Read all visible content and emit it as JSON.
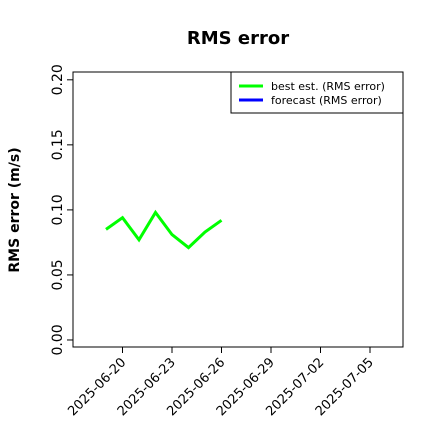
{
  "chart_data": {
    "type": "line",
    "title": "RMS error",
    "y_label": "RMS error (m/s)",
    "x": [
      "2025-06-19",
      "2025-06-20",
      "2025-06-21",
      "2025-06-22",
      "2025-06-23",
      "2025-06-24",
      "2025-06-25",
      "2025-06-26"
    ],
    "series": [
      {
        "name": "best est. (RMS error)",
        "color": "#00ff00",
        "values": [
          0.085,
          0.094,
          0.077,
          0.098,
          0.081,
          0.071,
          0.083,
          0.092
        ]
      },
      {
        "name": "forecast (RMS error)",
        "color": "#0000ff",
        "values": [
          null,
          null,
          null,
          null,
          null,
          null,
          null,
          null
        ]
      }
    ],
    "xlim": [
      "2025-06-17",
      "2025-07-07"
    ],
    "xticks": [
      "2025-06-20",
      "2025-06-23",
      "2025-06-26",
      "2025-06-29",
      "2025-07-02",
      "2025-07-05"
    ],
    "highlight_tick": "2025-06-26",
    "highlight_color": "#2e8b2e",
    "ylim": [
      -0.0054,
      0.206
    ],
    "yticks": [
      {
        "value": 0,
        "label": "0.00"
      },
      {
        "value": 0.05,
        "label": "0.05"
      },
      {
        "value": 0.1,
        "label": "0.10"
      },
      {
        "value": 0.15,
        "label": "0.15"
      },
      {
        "value": 0.2,
        "label": "0.20"
      }
    ],
    "legend": "upper right"
  }
}
